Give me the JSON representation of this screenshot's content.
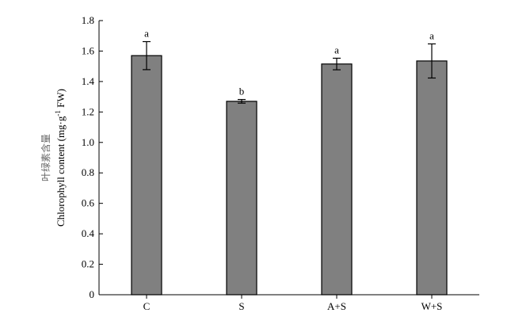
{
  "chart_data": {
    "type": "bar",
    "title": "",
    "xlabel": "",
    "ylabel_cn": "叶绿素含量",
    "ylabel_main": "Chlorophyll content (mg·g",
    "ylabel_sup": "-1",
    "ylabel_tail": " FW)",
    "ylim": [
      0,
      1.8
    ],
    "yticks": [
      0,
      0.2,
      0.4,
      0.6,
      0.8,
      1.0,
      1.2,
      1.4,
      1.6,
      1.8
    ],
    "ytick_labels": [
      "0",
      "0.2",
      "0.4",
      "0.6",
      "0.8",
      "1.0",
      "1.2",
      "1.4",
      "1.6",
      "1.8"
    ],
    "categories": [
      "C",
      "S",
      "A+S",
      "W+S"
    ],
    "values": [
      1.57,
      1.27,
      1.515,
      1.535
    ],
    "errors": [
      0.092,
      0.012,
      0.038,
      0.112
    ],
    "significance": [
      "a",
      "b",
      "a",
      "a"
    ],
    "bar_color": "#808080",
    "grid": false,
    "legend": "none"
  }
}
